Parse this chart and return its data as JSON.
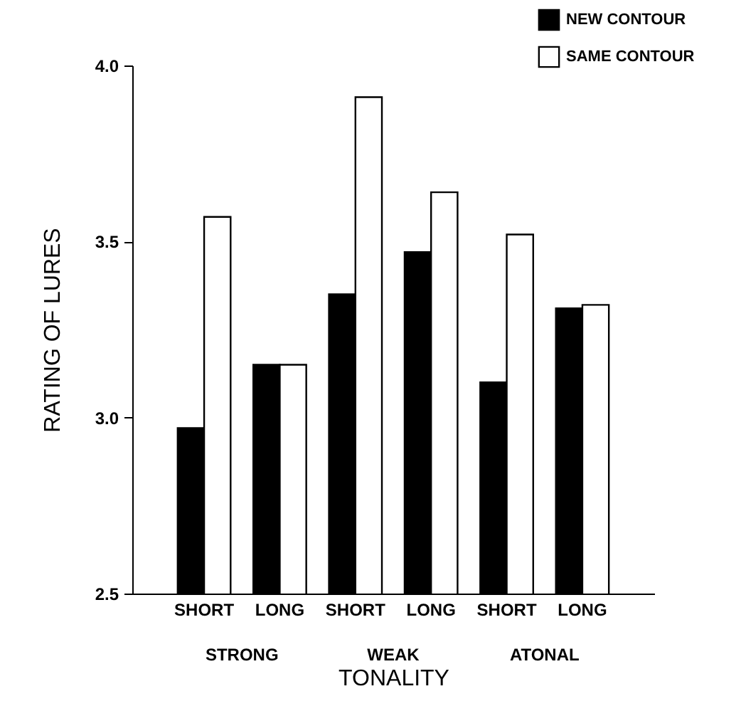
{
  "chart_data": {
    "type": "bar",
    "xlabel": "TONALITY",
    "ylabel": "RATING OF LURES",
    "categories": [
      "SHORT",
      "LONG",
      "SHORT",
      "LONG",
      "SHORT",
      "LONG"
    ],
    "series": [
      {
        "name": "NEW CONTOUR",
        "color": "#000000",
        "values": [
          2.97,
          3.15,
          3.35,
          3.47,
          3.1,
          3.31
        ]
      },
      {
        "name": "SAME CONTOUR",
        "color": "#ffffff",
        "values": [
          3.57,
          3.15,
          3.91,
          3.64,
          3.52,
          3.32
        ]
      }
    ],
    "annotations": [
      "STRONG",
      "WEAK",
      "ATONAL"
    ],
    "ylim": [
      2.5,
      4.0
    ],
    "yticks": [
      2.5,
      {
        "value": 3,
        "label": "3.0"
      },
      3.5,
      {
        "value": 4,
        "label": "4.0"
      }
    ],
    "grid": false,
    "legend": "top right"
  }
}
